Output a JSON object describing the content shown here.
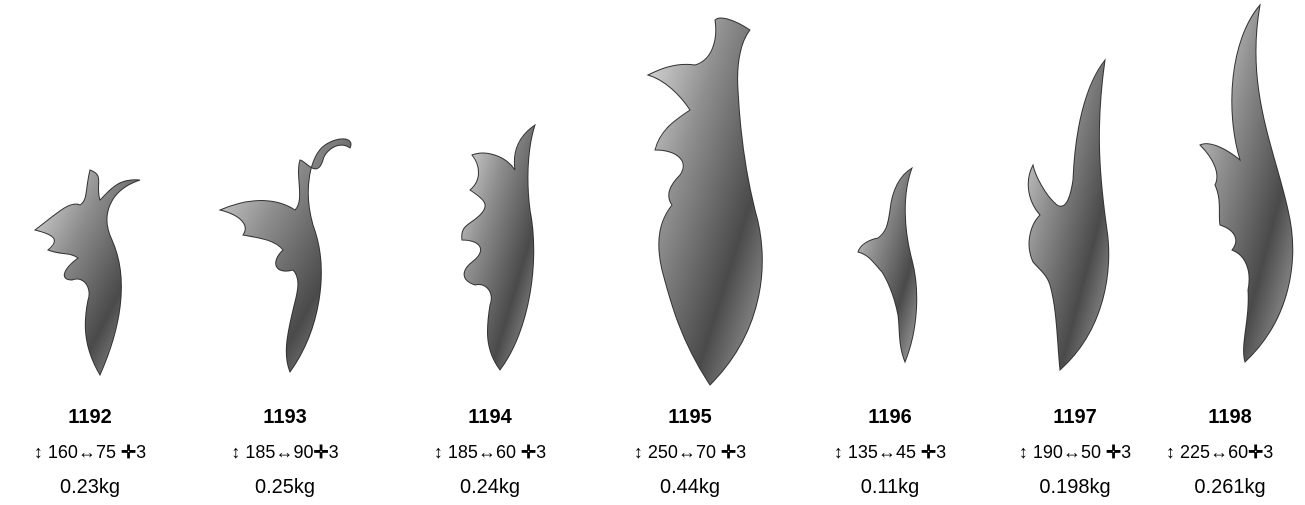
{
  "symbols": {
    "height": "↕",
    "width": "↔",
    "thickness": "✛"
  },
  "colors": {
    "metal_dark": "#3a3a3a",
    "metal_mid": "#8a8a8a",
    "metal_light": "#d6d6d6"
  },
  "items": [
    {
      "code": "1192",
      "height": "160",
      "width": "75",
      "thickness": "3",
      "weight": "0.23kg"
    },
    {
      "code": "1193",
      "height": "185",
      "width": "90",
      "thickness": "3",
      "weight": "0.25kg"
    },
    {
      "code": "1194",
      "height": "185",
      "width": "60",
      "thickness": "3",
      "weight": "0.24kg"
    },
    {
      "code": "1195",
      "height": "250",
      "width": "70",
      "thickness": "3",
      "weight": "0.44kg"
    },
    {
      "code": "1196",
      "height": "135",
      "width": "45",
      "thickness": "3",
      "weight": "0.11kg"
    },
    {
      "code": "1197",
      "height": "190",
      "width": "50",
      "thickness": "3",
      "weight": "0.198kg"
    },
    {
      "code": "1198",
      "height": "225",
      "width": "60",
      "thickness": "3",
      "weight": "0.261kg"
    }
  ]
}
